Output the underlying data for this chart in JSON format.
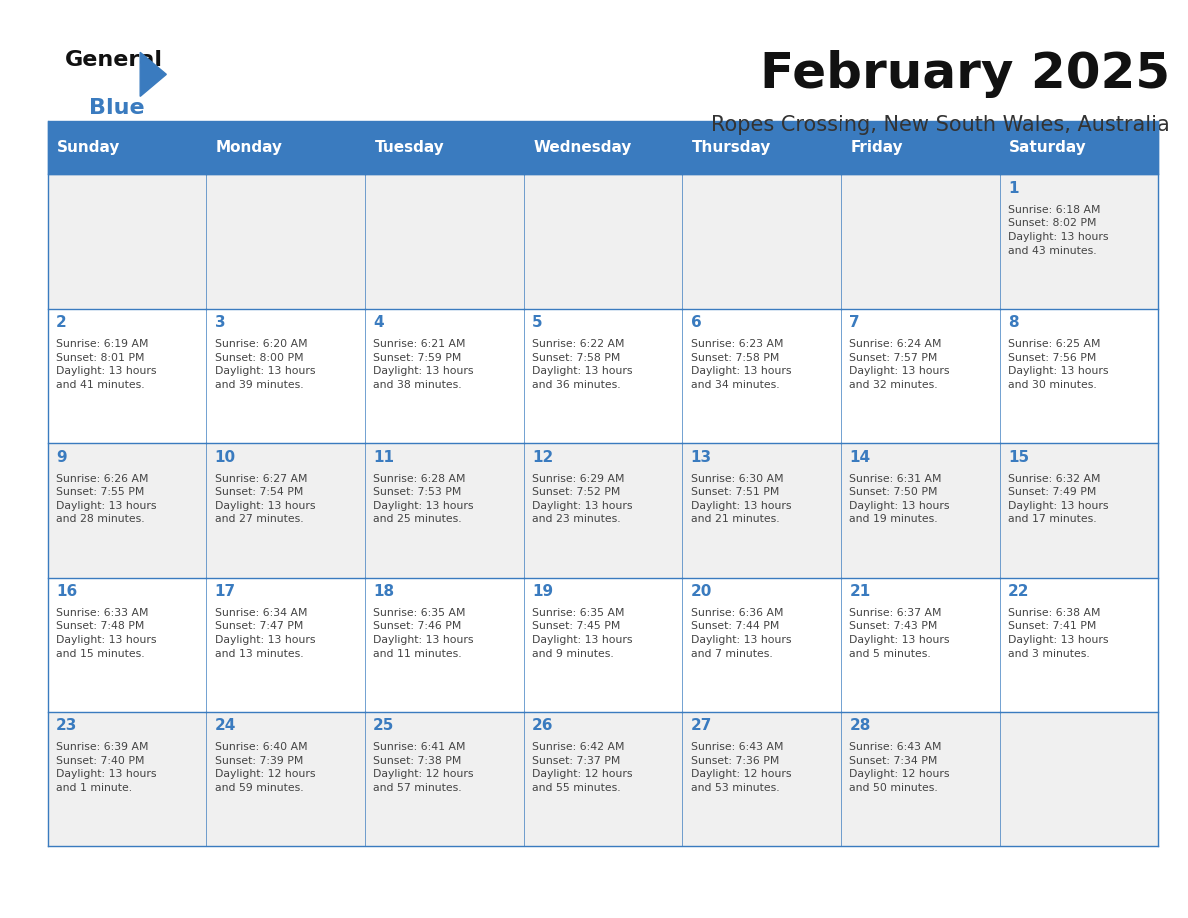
{
  "title": "February 2025",
  "subtitle": "Ropes Crossing, New South Wales, Australia",
  "days_of_week": [
    "Sunday",
    "Monday",
    "Tuesday",
    "Wednesday",
    "Thursday",
    "Friday",
    "Saturday"
  ],
  "header_bg": "#3a7bbf",
  "header_text_color": "#ffffff",
  "cell_border_color": "#3a7bbf",
  "day_number_color": "#3a7bbf",
  "cell_text_color": "#444444",
  "cell_bg_even": "#f0f0f0",
  "cell_bg_odd": "#ffffff",
  "title_color": "#111111",
  "subtitle_color": "#333333",
  "logo_general_color": "#111111",
  "logo_blue_color": "#3a7bbf",
  "weeks": [
    [
      {
        "day": null,
        "info": null
      },
      {
        "day": null,
        "info": null
      },
      {
        "day": null,
        "info": null
      },
      {
        "day": null,
        "info": null
      },
      {
        "day": null,
        "info": null
      },
      {
        "day": null,
        "info": null
      },
      {
        "day": 1,
        "info": "Sunrise: 6:18 AM\nSunset: 8:02 PM\nDaylight: 13 hours\nand 43 minutes."
      }
    ],
    [
      {
        "day": 2,
        "info": "Sunrise: 6:19 AM\nSunset: 8:01 PM\nDaylight: 13 hours\nand 41 minutes."
      },
      {
        "day": 3,
        "info": "Sunrise: 6:20 AM\nSunset: 8:00 PM\nDaylight: 13 hours\nand 39 minutes."
      },
      {
        "day": 4,
        "info": "Sunrise: 6:21 AM\nSunset: 7:59 PM\nDaylight: 13 hours\nand 38 minutes."
      },
      {
        "day": 5,
        "info": "Sunrise: 6:22 AM\nSunset: 7:58 PM\nDaylight: 13 hours\nand 36 minutes."
      },
      {
        "day": 6,
        "info": "Sunrise: 6:23 AM\nSunset: 7:58 PM\nDaylight: 13 hours\nand 34 minutes."
      },
      {
        "day": 7,
        "info": "Sunrise: 6:24 AM\nSunset: 7:57 PM\nDaylight: 13 hours\nand 32 minutes."
      },
      {
        "day": 8,
        "info": "Sunrise: 6:25 AM\nSunset: 7:56 PM\nDaylight: 13 hours\nand 30 minutes."
      }
    ],
    [
      {
        "day": 9,
        "info": "Sunrise: 6:26 AM\nSunset: 7:55 PM\nDaylight: 13 hours\nand 28 minutes."
      },
      {
        "day": 10,
        "info": "Sunrise: 6:27 AM\nSunset: 7:54 PM\nDaylight: 13 hours\nand 27 minutes."
      },
      {
        "day": 11,
        "info": "Sunrise: 6:28 AM\nSunset: 7:53 PM\nDaylight: 13 hours\nand 25 minutes."
      },
      {
        "day": 12,
        "info": "Sunrise: 6:29 AM\nSunset: 7:52 PM\nDaylight: 13 hours\nand 23 minutes."
      },
      {
        "day": 13,
        "info": "Sunrise: 6:30 AM\nSunset: 7:51 PM\nDaylight: 13 hours\nand 21 minutes."
      },
      {
        "day": 14,
        "info": "Sunrise: 6:31 AM\nSunset: 7:50 PM\nDaylight: 13 hours\nand 19 minutes."
      },
      {
        "day": 15,
        "info": "Sunrise: 6:32 AM\nSunset: 7:49 PM\nDaylight: 13 hours\nand 17 minutes."
      }
    ],
    [
      {
        "day": 16,
        "info": "Sunrise: 6:33 AM\nSunset: 7:48 PM\nDaylight: 13 hours\nand 15 minutes."
      },
      {
        "day": 17,
        "info": "Sunrise: 6:34 AM\nSunset: 7:47 PM\nDaylight: 13 hours\nand 13 minutes."
      },
      {
        "day": 18,
        "info": "Sunrise: 6:35 AM\nSunset: 7:46 PM\nDaylight: 13 hours\nand 11 minutes."
      },
      {
        "day": 19,
        "info": "Sunrise: 6:35 AM\nSunset: 7:45 PM\nDaylight: 13 hours\nand 9 minutes."
      },
      {
        "day": 20,
        "info": "Sunrise: 6:36 AM\nSunset: 7:44 PM\nDaylight: 13 hours\nand 7 minutes."
      },
      {
        "day": 21,
        "info": "Sunrise: 6:37 AM\nSunset: 7:43 PM\nDaylight: 13 hours\nand 5 minutes."
      },
      {
        "day": 22,
        "info": "Sunrise: 6:38 AM\nSunset: 7:41 PM\nDaylight: 13 hours\nand 3 minutes."
      }
    ],
    [
      {
        "day": 23,
        "info": "Sunrise: 6:39 AM\nSunset: 7:40 PM\nDaylight: 13 hours\nand 1 minute."
      },
      {
        "day": 24,
        "info": "Sunrise: 6:40 AM\nSunset: 7:39 PM\nDaylight: 12 hours\nand 59 minutes."
      },
      {
        "day": 25,
        "info": "Sunrise: 6:41 AM\nSunset: 7:38 PM\nDaylight: 12 hours\nand 57 minutes."
      },
      {
        "day": 26,
        "info": "Sunrise: 6:42 AM\nSunset: 7:37 PM\nDaylight: 12 hours\nand 55 minutes."
      },
      {
        "day": 27,
        "info": "Sunrise: 6:43 AM\nSunset: 7:36 PM\nDaylight: 12 hours\nand 53 minutes."
      },
      {
        "day": 28,
        "info": "Sunrise: 6:43 AM\nSunset: 7:34 PM\nDaylight: 12 hours\nand 50 minutes."
      },
      {
        "day": null,
        "info": null
      }
    ]
  ]
}
